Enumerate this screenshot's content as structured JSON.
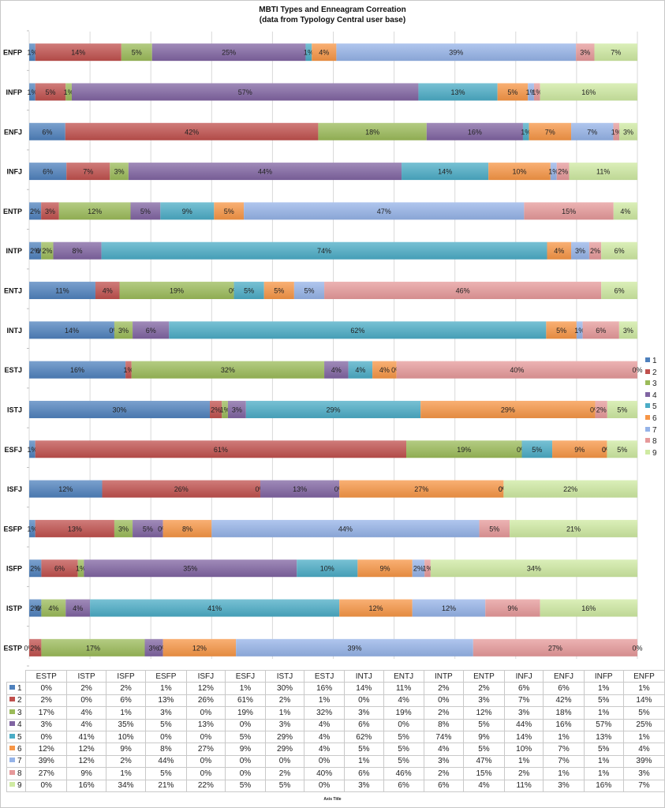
{
  "chart_data": {
    "type": "bar",
    "orientation": "horizontal",
    "stacked": "100%",
    "title": "MBTI Types and Enneagram Correation",
    "subtitle": "(data from Typology Central user base)",
    "xlabel": "Axis Title",
    "ylabel": "",
    "xlim": [
      0,
      100
    ],
    "grid": true,
    "legend_position": "right",
    "categories": [
      "ESTP",
      "ISTP",
      "ISFP",
      "ESFP",
      "ISFJ",
      "ESFJ",
      "ISTJ",
      "ESTJ",
      "INTJ",
      "ENTJ",
      "INTP",
      "ENTP",
      "INFJ",
      "ENFJ",
      "INFP",
      "ENFP"
    ],
    "series": [
      {
        "name": "1",
        "color": "#4f81bd",
        "values": [
          0,
          2,
          2,
          1,
          12,
          1,
          30,
          16,
          14,
          11,
          2,
          2,
          6,
          6,
          1,
          1
        ]
      },
      {
        "name": "2",
        "color": "#c0504d",
        "values": [
          2,
          0,
          6,
          13,
          26,
          61,
          2,
          1,
          0,
          4,
          0,
          3,
          7,
          42,
          5,
          14
        ]
      },
      {
        "name": "3",
        "color": "#9bbb59",
        "values": [
          17,
          4,
          1,
          3,
          0,
          19,
          1,
          32,
          3,
          19,
          2,
          12,
          3,
          18,
          1,
          5
        ]
      },
      {
        "name": "4",
        "color": "#8064a2",
        "values": [
          3,
          4,
          35,
          5,
          13,
          0,
          3,
          4,
          6,
          0,
          8,
          5,
          44,
          16,
          57,
          25
        ]
      },
      {
        "name": "5",
        "color": "#4bacc6",
        "values": [
          0,
          41,
          10,
          0,
          0,
          5,
          29,
          4,
          62,
          5,
          74,
          9,
          14,
          1,
          13,
          1
        ]
      },
      {
        "name": "6",
        "color": "#f79646",
        "values": [
          12,
          12,
          9,
          8,
          27,
          9,
          29,
          4,
          5,
          5,
          4,
          5,
          10,
          7,
          5,
          4
        ]
      },
      {
        "name": "7",
        "color": "#95b3e8",
        "values": [
          39,
          12,
          2,
          44,
          0,
          0,
          0,
          0,
          1,
          5,
          3,
          47,
          1,
          7,
          1,
          39
        ]
      },
      {
        "name": "8",
        "color": "#e6999a",
        "values": [
          27,
          9,
          1,
          5,
          0,
          0,
          2,
          40,
          6,
          46,
          2,
          15,
          2,
          1,
          1,
          3
        ]
      },
      {
        "name": "9",
        "color": "#cfeaa2",
        "values": [
          0,
          16,
          34,
          21,
          22,
          5,
          5,
          0,
          3,
          6,
          6,
          4,
          11,
          3,
          16,
          7
        ]
      }
    ],
    "value_suffix": "%"
  }
}
